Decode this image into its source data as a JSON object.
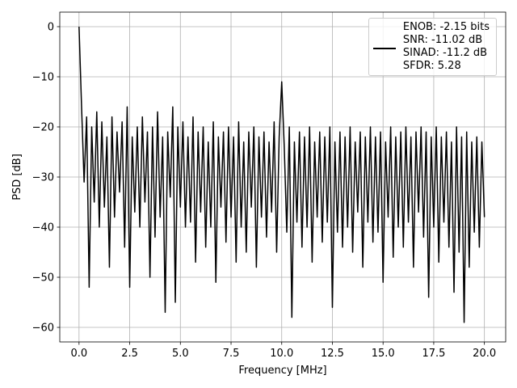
{
  "chart_data": {
    "type": "line",
    "xlabel": "Frequency [MHz]",
    "ylabel": "PSD [dB]",
    "x": [
      0,
      0.125,
      0.25,
      0.375,
      0.5,
      0.625,
      0.75,
      0.875,
      1,
      1.125,
      1.25,
      1.375,
      1.5,
      1.625,
      1.75,
      1.875,
      2,
      2.125,
      2.25,
      2.375,
      2.5,
      2.625,
      2.75,
      2.875,
      3,
      3.125,
      3.25,
      3.375,
      3.5,
      3.625,
      3.75,
      3.875,
      4,
      4.125,
      4.25,
      4.375,
      4.5,
      4.625,
      4.75,
      4.875,
      5,
      5.125,
      5.25,
      5.375,
      5.5,
      5.625,
      5.75,
      5.875,
      6,
      6.125,
      6.25,
      6.375,
      6.5,
      6.625,
      6.75,
      6.875,
      7,
      7.125,
      7.25,
      7.375,
      7.5,
      7.625,
      7.75,
      7.875,
      8,
      8.125,
      8.25,
      8.375,
      8.5,
      8.625,
      8.75,
      8.875,
      9,
      9.125,
      9.25,
      9.375,
      9.5,
      9.625,
      9.75,
      9.875,
      10,
      10.125,
      10.25,
      10.375,
      10.5,
      10.625,
      10.75,
      10.875,
      11,
      11.125,
      11.25,
      11.375,
      11.5,
      11.625,
      11.75,
      11.875,
      12,
      12.125,
      12.25,
      12.375,
      12.5,
      12.625,
      12.75,
      12.875,
      13,
      13.125,
      13.25,
      13.375,
      13.5,
      13.625,
      13.75,
      13.875,
      14,
      14.125,
      14.25,
      14.375,
      14.5,
      14.625,
      14.75,
      14.875,
      15,
      15.125,
      15.25,
      15.375,
      15.5,
      15.625,
      15.75,
      15.875,
      16,
      16.125,
      16.25,
      16.375,
      16.5,
      16.625,
      16.75,
      16.875,
      17,
      17.125,
      17.25,
      17.375,
      17.5,
      17.625,
      17.75,
      17.875,
      18,
      18.125,
      18.25,
      18.375,
      18.5,
      18.625,
      18.75,
      18.875,
      19,
      19.125,
      19.25,
      19.375,
      19.5,
      19.625,
      19.75,
      19.875,
      20
    ],
    "series": [
      {
        "name": "ENOB: -2.15 bits\nSNR: -11.02 dB\nSINAD: -11.2 dB\nSFDR: 5.28",
        "color": "#000000",
        "values": [
          0,
          -16,
          -31,
          -18,
          -52,
          -20,
          -35,
          -17,
          -40,
          -19,
          -36,
          -22,
          -48,
          -18,
          -38,
          -21,
          -33,
          -19,
          -44,
          -16,
          -52,
          -22,
          -37,
          -20,
          -40,
          -18,
          -35,
          -21,
          -50,
          -20,
          -42,
          -17,
          -38,
          -22,
          -57,
          -21,
          -34,
          -16,
          -55,
          -20,
          -36,
          -19,
          -40,
          -22,
          -39,
          -18,
          -47,
          -21,
          -37,
          -20,
          -44,
          -23,
          -40,
          -19,
          -51,
          -22,
          -36,
          -21,
          -43,
          -20,
          -38,
          -22,
          -47,
          -19,
          -40,
          -23,
          -45,
          -21,
          -36,
          -20,
          -48,
          -22,
          -38,
          -21,
          -42,
          -23,
          -37,
          -19,
          -45,
          -22,
          -11,
          -24,
          -41,
          -20,
          -58,
          -23,
          -39,
          -21,
          -44,
          -22,
          -40,
          -20,
          -47,
          -23,
          -38,
          -21,
          -43,
          -22,
          -39,
          -20,
          -56,
          -23,
          -41,
          -21,
          -44,
          -22,
          -40,
          -20,
          -45,
          -23,
          -37,
          -21,
          -48,
          -22,
          -39,
          -20,
          -43,
          -22,
          -41,
          -21,
          -51,
          -23,
          -38,
          -20,
          -46,
          -22,
          -40,
          -21,
          -44,
          -20,
          -39,
          -22,
          -48,
          -21,
          -37,
          -20,
          -42,
          -21,
          -54,
          -22,
          -40,
          -20,
          -47,
          -22,
          -39,
          -21,
          -44,
          -23,
          -53,
          -20,
          -45,
          -22,
          -59,
          -21,
          -48,
          -23,
          -41,
          -22,
          -44,
          -23,
          -38
        ]
      }
    ],
    "xlim": [
      -0.95,
      21.05
    ],
    "ylim": [
      -62.9,
      2.9
    ],
    "xticks": [
      {
        "value": 0,
        "label": "0.0"
      },
      {
        "value": 2.5,
        "label": "2.5"
      },
      {
        "value": 5,
        "label": "5.0"
      },
      {
        "value": 7.5,
        "label": "7.5"
      },
      {
        "value": 10,
        "label": "10.0"
      },
      {
        "value": 12.5,
        "label": "12.5"
      },
      {
        "value": 15,
        "label": "15.0"
      },
      {
        "value": 17.5,
        "label": "17.5"
      },
      {
        "value": 20,
        "label": "20.0"
      }
    ],
    "yticks": [
      0,
      {
        "value": -10,
        "label": "−10"
      },
      {
        "value": -20,
        "label": "−20"
      },
      {
        "value": -30,
        "label": "−30"
      },
      {
        "value": -40,
        "label": "−40"
      },
      {
        "value": -50,
        "label": "−50"
      },
      {
        "value": -60,
        "label": "−60"
      }
    ],
    "grid": true,
    "legend": "upper right"
  }
}
